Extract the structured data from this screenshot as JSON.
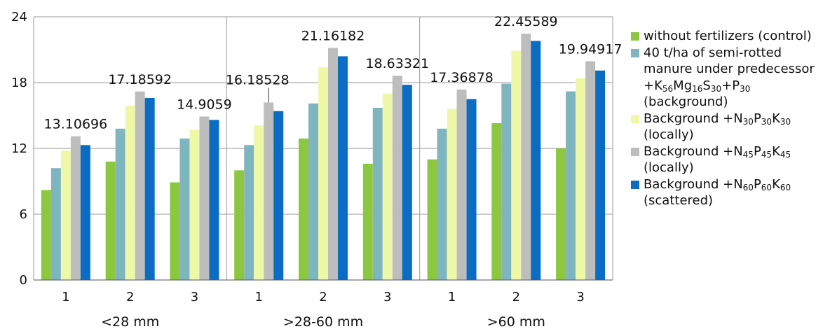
{
  "chart_data": {
    "type": "bar",
    "ylim": [
      0,
      24
    ],
    "yticks": [
      "0",
      "6",
      "12",
      "18",
      "24"
    ],
    "grid": true,
    "legend_position": "right",
    "group_labels": [
      "<28 mm",
      ">28-60 mm",
      ">60 mm"
    ],
    "categories": [
      "1",
      "2",
      "3",
      "1",
      "2",
      "3",
      "1",
      "2",
      "3"
    ],
    "series": [
      {
        "name": "without fertilizers (control)",
        "color": "#8DC63F",
        "values": [
          8.2,
          10.8,
          8.9,
          10.0,
          12.9,
          10.6,
          11.0,
          14.3,
          12.0
        ]
      },
      {
        "name": "40 t/ha of semi-rotted manure under predecessor +K56Mg16S30+P30 (background)",
        "color": "#7FB5BE",
        "values": [
          10.2,
          13.8,
          12.9,
          12.3,
          16.1,
          15.7,
          13.8,
          17.9,
          17.2
        ]
      },
      {
        "name": "Background +N30P30K30 (locally)",
        "color": "#EEF8A8",
        "values": [
          11.8,
          15.9,
          13.7,
          14.1,
          19.4,
          17.0,
          15.6,
          20.9,
          18.4
        ]
      },
      {
        "name": "Background +N45P45K45 (locally)",
        "color": "#BDBDBD",
        "values": [
          13.10696,
          17.18592,
          14.9059,
          16.18528,
          21.16182,
          18.63321,
          17.36878,
          22.45589,
          19.94917
        ]
      },
      {
        "name": "Background +N60P60K60 (scattered)",
        "color": "#0A6CC2",
        "values": [
          12.3,
          16.6,
          14.6,
          15.4,
          20.4,
          17.8,
          16.5,
          21.8,
          19.1
        ]
      }
    ],
    "data_labels": [
      "13.10696",
      "17.18592",
      "14.9059",
      "16.18528",
      "21.16182",
      "18.63321",
      "17.36878",
      "22.45589",
      "19.94917"
    ]
  },
  "legend": [
    {
      "color": "#8DC63F",
      "parts": [
        {
          "t": "without fertilizers (control)"
        }
      ]
    },
    {
      "color": "#7FB5BE",
      "parts": [
        {
          "t": "40 t/ha of semi-rotted manure under predecessor +K"
        },
        {
          "s": "56"
        },
        {
          "t": "Mg"
        },
        {
          "s": "16"
        },
        {
          "t": "S"
        },
        {
          "s": "30"
        },
        {
          "t": "+P"
        },
        {
          "s": "30"
        },
        {
          "t": " (background)"
        }
      ]
    },
    {
      "color": "#EEF8A8",
      "parts": [
        {
          "t": "Background +N"
        },
        {
          "s": "30"
        },
        {
          "t": "P"
        },
        {
          "s": "30"
        },
        {
          "t": "K"
        },
        {
          "s": "30"
        },
        {
          "t": " (locally)"
        }
      ]
    },
    {
      "color": "#BDBDBD",
      "parts": [
        {
          "t": "Background +N"
        },
        {
          "s": "45"
        },
        {
          "t": "P"
        },
        {
          "s": "45"
        },
        {
          "t": "K"
        },
        {
          "s": "45"
        },
        {
          "t": " (locally)"
        }
      ]
    },
    {
      "color": "#0A6CC2",
      "parts": [
        {
          "t": "Background +N"
        },
        {
          "s": "60"
        },
        {
          "t": "P"
        },
        {
          "s": "60"
        },
        {
          "t": "K"
        },
        {
          "s": "60"
        },
        {
          "t": " (scattered)"
        }
      ]
    }
  ]
}
